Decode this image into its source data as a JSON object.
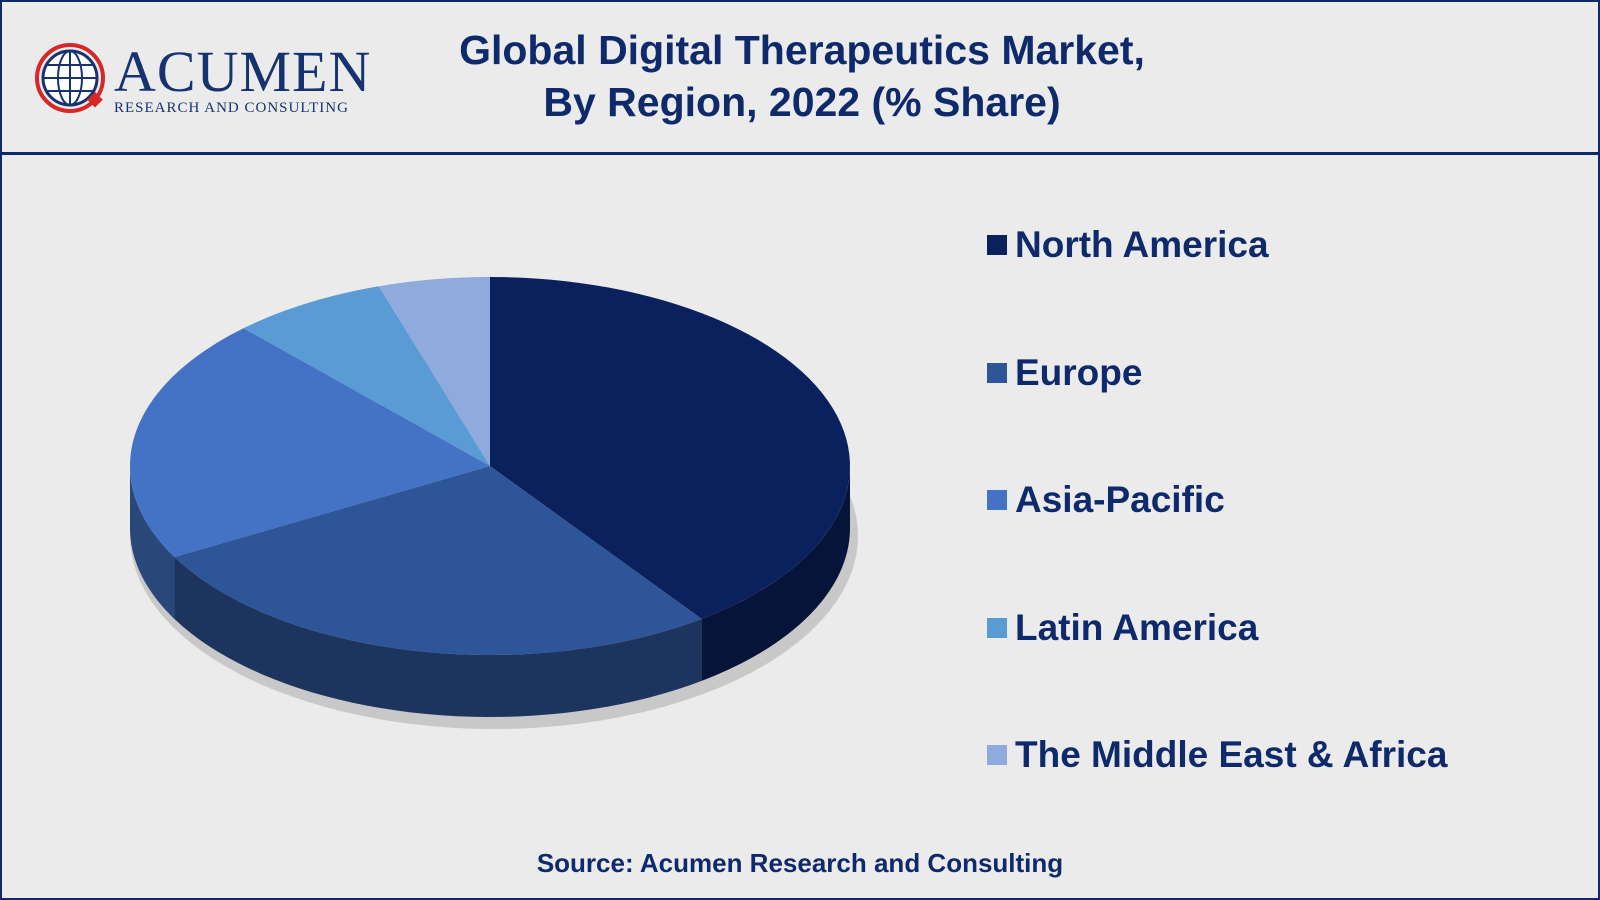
{
  "logo": {
    "name": "ACUMEN",
    "tagline": "RESEARCH AND CONSULTING"
  },
  "chart_data": {
    "type": "pie",
    "title": "Global Digital Therapeutics Market,\nBy Region, 2022 (% Share)",
    "categories": [
      "North America",
      "Europe",
      "Asia-Pacific",
      "Latin America",
      "The Middle East & Africa"
    ],
    "values": [
      40,
      27,
      21,
      7,
      5
    ],
    "colors": [
      "#0b215e",
      "#2e5597",
      "#4472c4",
      "#5b9bd5",
      "#8faadc"
    ],
    "legend": "right"
  },
  "source": "Source: Acumen Research and Consulting"
}
